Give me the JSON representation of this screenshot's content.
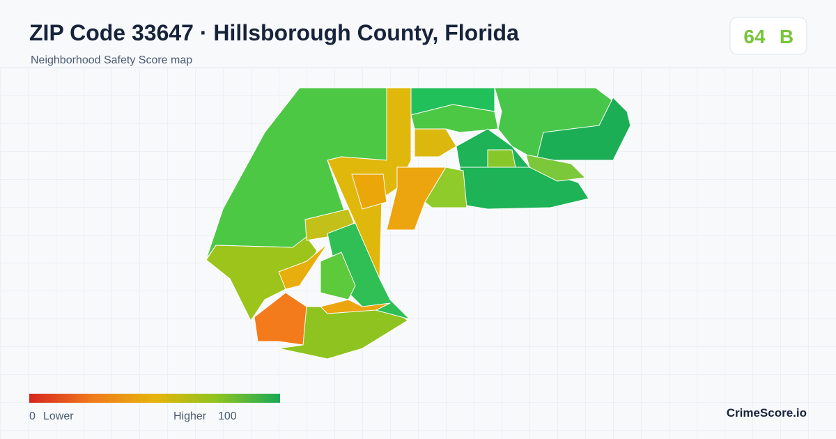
{
  "header": {
    "title": "ZIP Code 33647 · Hillsborough County, Florida",
    "subtitle": "Neighborhood Safety Score map"
  },
  "badge": {
    "score": 64,
    "grade": "B"
  },
  "legend": {
    "min": 0,
    "min_label": "Lower",
    "max_label": "Higher",
    "max": 100
  },
  "brand": "CrimeScore.io"
}
